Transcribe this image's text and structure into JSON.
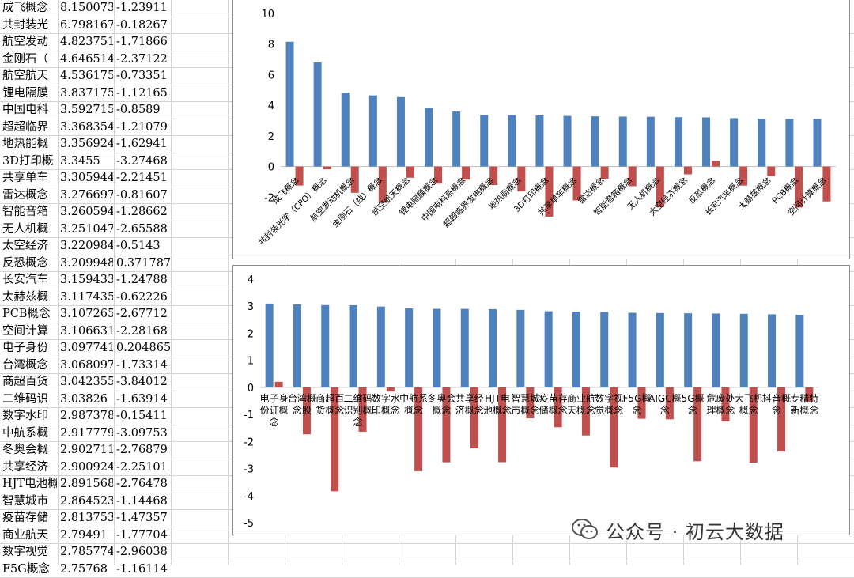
{
  "sheet": {
    "rows": [
      {
        "name": "成飞概念",
        "v1": "8.150073",
        "v2": "-1.23911"
      },
      {
        "name": "共封装光",
        "v1": "6.798167",
        "v2": "-0.18267"
      },
      {
        "name": "航空发动",
        "v1": "4.823751",
        "v2": "-1.71866"
      },
      {
        "name": "金刚石（",
        "v1": "4.646514",
        "v2": "-2.37122"
      },
      {
        "name": "航空航天",
        "v1": "4.536175",
        "v2": "-0.73351"
      },
      {
        "name": "锂电隔膜",
        "v1": "3.837175",
        "v2": "-1.12165"
      },
      {
        "name": "中国电科",
        "v1": "3.592715",
        "v2": "-0.8589"
      },
      {
        "name": "超超临界",
        "v1": "3.368354",
        "v2": "-1.21079"
      },
      {
        "name": "地热能概",
        "v1": "3.356924",
        "v2": "-1.62941"
      },
      {
        "name": "3D打印概",
        "v1": "3.3455",
        "v2": "-3.27468"
      },
      {
        "name": "共享单车",
        "v1": "3.305944",
        "v2": "-2.21451"
      },
      {
        "name": "雷达概念",
        "v1": "3.276697",
        "v2": "-0.81607"
      },
      {
        "name": "智能音箱",
        "v1": "3.260594",
        "v2": "-1.28662"
      },
      {
        "name": "无人机概",
        "v1": "3.251047",
        "v2": "-2.65588"
      },
      {
        "name": "太空经济",
        "v1": "3.220984",
        "v2": "-0.5143"
      },
      {
        "name": "反恐概念",
        "v1": "3.209948",
        "v2": "0.371787"
      },
      {
        "name": "长安汽车",
        "v1": "3.159433",
        "v2": "-1.24788"
      },
      {
        "name": "太赫兹概",
        "v1": "3.117435",
        "v2": "-0.62226"
      },
      {
        "name": "PCB概念",
        "v1": "3.107265",
        "v2": "-2.67712"
      },
      {
        "name": "空间计算",
        "v1": "3.106631",
        "v2": "-2.28168"
      },
      {
        "name": "电子身份",
        "v1": "3.097741",
        "v2": "0.204865"
      },
      {
        "name": "台湾概念",
        "v1": "3.068097",
        "v2": "-1.73314"
      },
      {
        "name": "商超百货",
        "v1": "3.042355",
        "v2": "-3.84012"
      },
      {
        "name": "二维码识",
        "v1": "3.03826",
        "v2": "-1.63914"
      },
      {
        "name": "数字水印",
        "v1": "2.987378",
        "v2": "-0.15411"
      },
      {
        "name": "中航系概",
        "v1": "2.917779",
        "v2": "-3.09753"
      },
      {
        "name": "冬奥会概",
        "v1": "2.902711",
        "v2": "-2.76879"
      },
      {
        "name": "共享经济",
        "v1": "2.900924",
        "v2": "-2.25101"
      },
      {
        "name": "HJT电池概",
        "v1": "2.891568",
        "v2": "-2.76478"
      },
      {
        "name": "智慧城市",
        "v1": "2.864523",
        "v2": "-1.14468"
      },
      {
        "name": "疫苗存储",
        "v1": "2.813753",
        "v2": "-1.47357"
      },
      {
        "name": "商业航天",
        "v1": "2.79491",
        "v2": "-1.77704"
      },
      {
        "name": "数字视觉",
        "v1": "2.785774",
        "v2": "-2.96038"
      },
      {
        "name": "F5G概念",
        "v1": "2.75768",
        "v2": "-1.16114"
      }
    ]
  },
  "chart_data": [
    {
      "type": "bar",
      "categories": [
        "成飞概念",
        "共封装光学（CPO）概念",
        "航空发动机概念",
        "金刚石（线）概念",
        "航空航天概念",
        "锂电隔膜概念",
        "中国电科系概念",
        "超超临界发电概念",
        "地热能概念",
        "3D打印概念",
        "共享单车概念",
        "雷达概念",
        "智能音箱概念",
        "无人机概念",
        "太空经济概念",
        "反恐概念",
        "长安汽车概念",
        "太赫兹概念",
        "PCB概念",
        "空间计算概念"
      ],
      "series": [
        {
          "values": [
            8.150073,
            6.798167,
            4.823751,
            4.646514,
            4.536175,
            3.837175,
            3.592715,
            3.368354,
            3.356924,
            3.3455,
            3.305944,
            3.276697,
            3.260594,
            3.251047,
            3.220984,
            3.209948,
            3.159433,
            3.117435,
            3.107265,
            3.106631
          ],
          "color": "#4f81bd"
        },
        {
          "values": [
            -1.23911,
            -0.18267,
            -1.71866,
            -2.37122,
            -0.73351,
            -1.12165,
            -0.8589,
            -1.21079,
            -1.62941,
            -3.27468,
            -2.21451,
            -0.81607,
            -1.28662,
            -2.65588,
            -0.5143,
            0.371787,
            -1.24788,
            -0.62226,
            -2.67712,
            -2.28168
          ],
          "color": "#c0504d"
        }
      ],
      "ylim": [
        -4,
        10
      ],
      "yticks": [
        "10",
        "8",
        "6",
        "4",
        "2",
        "0",
        "-2"
      ],
      "grid": false,
      "legend": "none"
    },
    {
      "type": "bar",
      "categories": [
        "电子身份证概念",
        "台湾概念股",
        "商超百货概念",
        "二维码识别概念",
        "数字水印概念",
        "中航系概念",
        "冬奥会概念",
        "共享经济概念",
        "HJT电池概念",
        "智慧城市概念",
        "疫苗存储概念",
        "商业航天概念",
        "数字视觉概念",
        "F5G概念",
        "AIGC概念",
        "5G概念",
        "危废处理概念",
        "大飞机概念",
        "抖音概念",
        "专精特新概念"
      ],
      "category_labels": [
        [
          "电子身",
          "份证概",
          "念"
        ],
        [
          "台湾概",
          "念股"
        ],
        [
          "商超百",
          "货概念"
        ],
        [
          "二维码",
          "识别概",
          "念"
        ],
        [
          "数字水",
          "印概念"
        ],
        [
          "中航系",
          "概念"
        ],
        [
          "冬奥会",
          "概念"
        ],
        [
          "共享经",
          "济概念"
        ],
        [
          "HJT电",
          "池概念"
        ],
        [
          "智慧城",
          "市概念"
        ],
        [
          "疫苗存",
          "储概念"
        ],
        [
          "商业航",
          "天概念"
        ],
        [
          "数字视",
          "觉概念"
        ],
        [
          "F5G概",
          "念"
        ],
        [
          "AIGC概",
          "念"
        ],
        [
          "5G概",
          "念"
        ],
        [
          "危废处",
          "理概念"
        ],
        [
          "大飞机",
          "概念"
        ],
        [
          "抖音概",
          "念"
        ],
        [
          "专精特",
          "新概念"
        ]
      ],
      "series": [
        {
          "values": [
            3.097741,
            3.068097,
            3.042355,
            3.03826,
            2.987378,
            2.917779,
            2.902711,
            2.900924,
            2.891568,
            2.864523,
            2.813753,
            2.79491,
            2.785774,
            2.75768,
            2.75,
            2.74,
            2.73,
            2.72,
            2.7,
            2.68
          ],
          "color": "#4f81bd"
        },
        {
          "values": [
            0.204865,
            -1.73314,
            -3.84012,
            -1.63914,
            -0.15411,
            -3.09753,
            -2.76879,
            -2.25101,
            -2.76478,
            -1.14468,
            -1.47357,
            -1.77704,
            -2.96038,
            -1.16114,
            -1.18,
            -2.73,
            -1.26,
            -2.78,
            -2.37,
            -0.53
          ],
          "color": "#c0504d"
        }
      ],
      "ylim": [
        -5,
        4
      ],
      "yticks": [
        "4",
        "3",
        "2",
        "1",
        "0",
        "-1",
        "-2",
        "-3",
        "-4",
        "-5"
      ],
      "grid": false,
      "legend": "none"
    }
  ],
  "watermark": {
    "text": "公众号 · 初云大数据",
    "icon": "wechat-icon"
  }
}
